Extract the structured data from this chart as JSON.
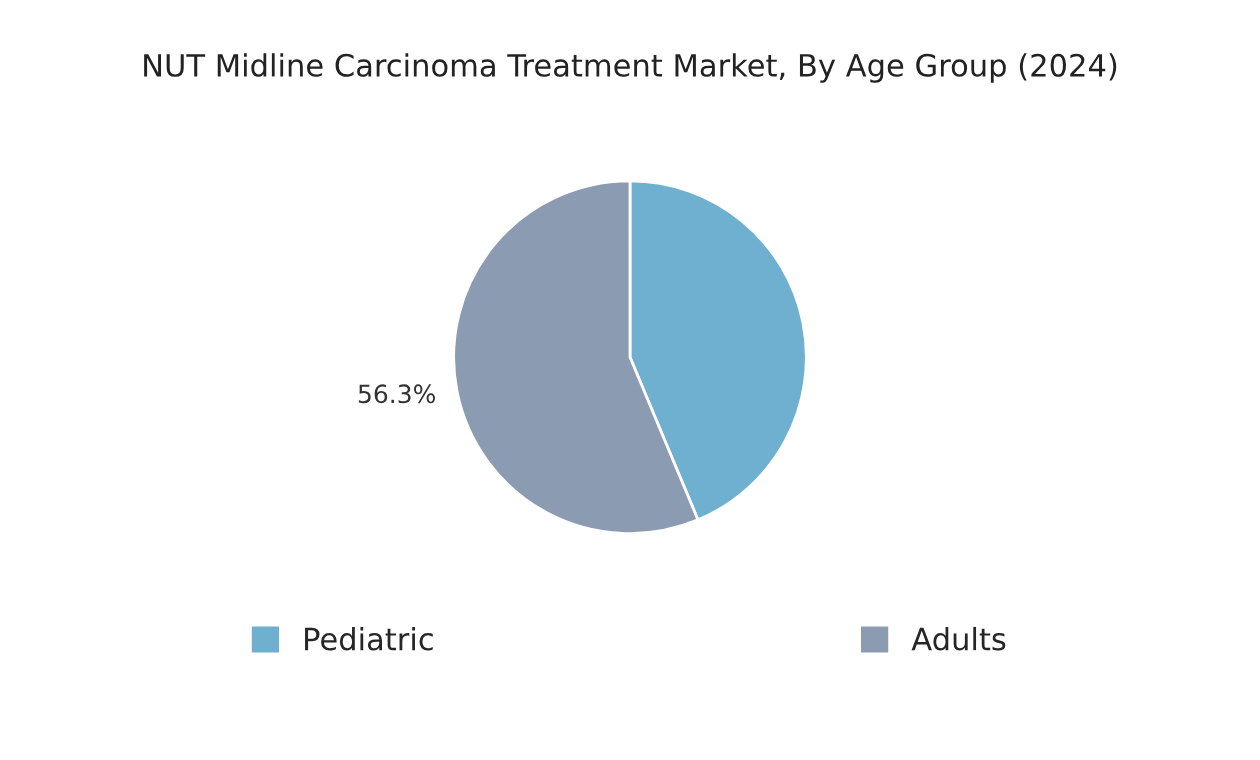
{
  "chart_data": {
    "type": "pie",
    "title": "NUT Midline Carcinoma Treatment Market, By Age Group (2024)",
    "categories": [
      "Pediatric",
      "Adults"
    ],
    "values": [
      43.7,
      56.3
    ],
    "value_labels": [
      null,
      "56.3%"
    ],
    "colors": [
      "#6fb0d0",
      "#8a9bb2"
    ],
    "legend": "bottom"
  }
}
